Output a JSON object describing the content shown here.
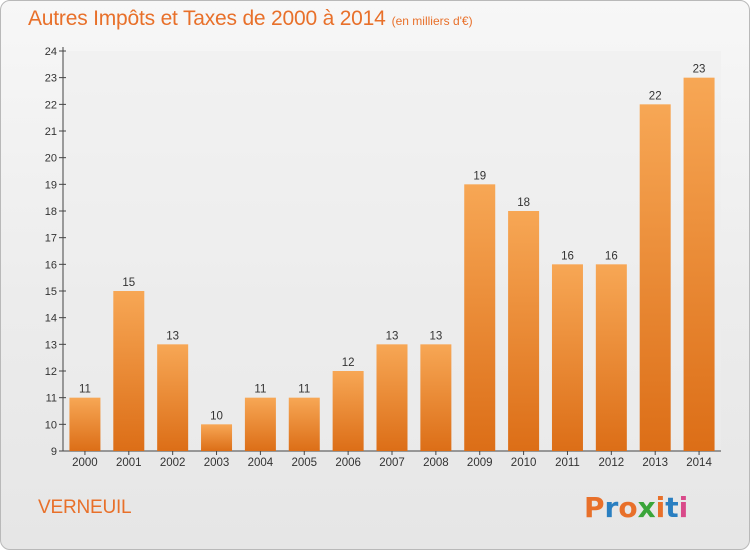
{
  "header": {
    "title": "Autres Impôts et Taxes de 2000 à 2014",
    "unit": "(en milliers d'€)"
  },
  "footer": {
    "location": "VERNEUIL",
    "logo_text": "Proxiti"
  },
  "colors": {
    "accent": "#e8702a",
    "bar_top": "#f7a755",
    "bar_bottom": "#dc6e17",
    "logo": [
      "#e8702a",
      "#2a7fc1",
      "#e8702a",
      "#3aa53a",
      "#e8702a",
      "#2a7fc1",
      "#d94a8a"
    ]
  },
  "chart_data": {
    "type": "bar",
    "title": "Autres Impôts et Taxes de 2000 à 2014",
    "xlabel": "",
    "ylabel": "",
    "categories": [
      "2000",
      "2001",
      "2002",
      "2003",
      "2004",
      "2005",
      "2006",
      "2007",
      "2008",
      "2009",
      "2010",
      "2011",
      "2012",
      "2013",
      "2014"
    ],
    "values": [
      11,
      15,
      13,
      10,
      11,
      11,
      12,
      13,
      13,
      19,
      18,
      16,
      16,
      22,
      23
    ],
    "ylim": [
      9,
      24
    ],
    "yticks": [
      9,
      10,
      11,
      12,
      13,
      14,
      15,
      16,
      17,
      18,
      19,
      20,
      21,
      22,
      23,
      24
    ],
    "grid": false,
    "data_labels": true
  }
}
